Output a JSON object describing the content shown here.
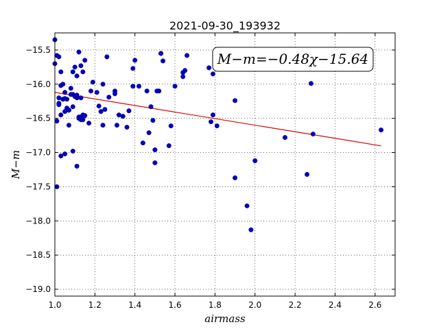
{
  "chart_data": {
    "type": "scatter",
    "title": "2021-09-30_193932",
    "xlabel": "airmass",
    "ylabel": "M−m",
    "xlim": [
      1.0,
      2.7
    ],
    "ylim": [
      -19.1,
      -15.25
    ],
    "xticks": [
      1.0,
      1.2,
      1.4,
      1.6,
      1.8,
      2.0,
      2.2,
      2.4,
      2.6
    ],
    "yticks": [
      -15.5,
      -16.0,
      -16.5,
      -17.0,
      -17.5,
      -18.0,
      -18.5,
      -19.0
    ],
    "grid": true,
    "annotation": "M−m=−0.48χ−15.64",
    "point_color": "#0000cc",
    "fit_color": "#dd0000",
    "fit": {
      "slope": -0.48,
      "intercept": -15.64,
      "x_start": 1.0,
      "x_end": 2.63
    },
    "series": [
      {
        "x": [
          1.0,
          1.0,
          1.01,
          1.02,
          1.03,
          1.03,
          1.04,
          1.05,
          1.06,
          1.07,
          1.08,
          1.09,
          1.1,
          1.11,
          1.12,
          1.13,
          1.14,
          1.15,
          1.02,
          1.04,
          1.05,
          1.06,
          1.08,
          1.09,
          1.1,
          1.11,
          1.12,
          1.13,
          1.14,
          1.01,
          1.02,
          1.03,
          1.05,
          1.07,
          1.09,
          1.11,
          1.12,
          1.13,
          1.14,
          1.02,
          1.03,
          1.05,
          1.07,
          1.09,
          1.11,
          1.13,
          1.01,
          1.15,
          1.17,
          1.18,
          1.19,
          1.21,
          1.22,
          1.24,
          1.25,
          1.26,
          1.27,
          1.3,
          1.3,
          1.31,
          1.32,
          1.34,
          1.36,
          1.37,
          1.39,
          1.39,
          1.4,
          1.42,
          1.44,
          1.46,
          1.47,
          1.48,
          1.49,
          1.5,
          1.52,
          1.53,
          1.54,
          1.57,
          1.58,
          1.6,
          1.64,
          1.65,
          1.66,
          1.77,
          1.78,
          1.79,
          1.79,
          1.81,
          1.9,
          1.9,
          1.96,
          1.98,
          2.0,
          2.15,
          2.26,
          2.28,
          2.29,
          2.63,
          1.5,
          1.23,
          1.24,
          1.51,
          1.53,
          1.64
        ],
        "y": [
          -15.35,
          -15.7,
          -15.58,
          -15.6,
          -15.82,
          -16.02,
          -16.0,
          -16.12,
          -16.22,
          -16.38,
          -16.06,
          -16.15,
          -16.18,
          -15.88,
          -15.53,
          -15.73,
          -15.82,
          -15.65,
          -16.28,
          -16.22,
          -16.21,
          -16.35,
          -16.15,
          -16.33,
          -15.75,
          -16.2,
          -16.5,
          -16.48,
          -16.52,
          -16.54,
          -16.3,
          -16.45,
          -17.02,
          -16.6,
          -16.98,
          -17.2,
          -16.48,
          -16.52,
          -16.45,
          -16.2,
          -17.05,
          -16.4,
          -16.38,
          -15.82,
          -16.16,
          -16.2,
          -17.5,
          -16.46,
          -16.57,
          -16.1,
          -15.97,
          -16.12,
          -16.32,
          -16.6,
          -16.37,
          -15.6,
          -16.19,
          -16.14,
          -16.1,
          -16.6,
          -16.45,
          -16.47,
          -16.63,
          -16.39,
          -16.03,
          -15.77,
          -15.65,
          -16.03,
          -16.86,
          -16.1,
          -16.71,
          -16.33,
          -16.53,
          -16.96,
          -16.1,
          -15.55,
          -15.66,
          -16.9,
          -16.61,
          -16.03,
          -15.89,
          -15.8,
          -15.58,
          -15.76,
          -16.55,
          -16.45,
          -15.85,
          -16.61,
          -16.24,
          -17.37,
          -17.78,
          -18.13,
          -17.12,
          -16.78,
          -17.32,
          -15.99,
          -16.73,
          -16.67,
          -17.15,
          -16.4,
          -16.0,
          -16.1,
          -15.55,
          -15.83
        ]
      }
    ]
  }
}
